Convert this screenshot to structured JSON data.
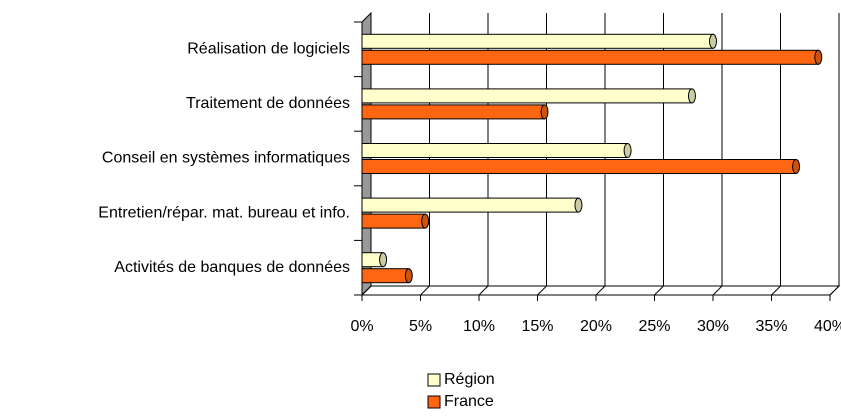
{
  "chart_data": {
    "type": "bar",
    "orientation": "horizontal",
    "categories": [
      "Réalisation de logiciels",
      "Traitement de données",
      "Conseil en systèmes informatiques",
      "Entretien/répar. mat. bureau et info.",
      "Activités de banques de données"
    ],
    "series": [
      {
        "name": "Région",
        "color": "#ffffcc",
        "values": [
          30,
          28.2,
          22.7,
          18.5,
          1.8
        ]
      },
      {
        "name": "France",
        "color": "#ff6611",
        "values": [
          39,
          15.6,
          37.1,
          5.4,
          4.0
        ]
      }
    ],
    "xlim": [
      0,
      40
    ],
    "xticks": [
      {
        "value": 0,
        "label": "0%"
      },
      {
        "value": 5,
        "label": "5%"
      },
      {
        "value": 10,
        "label": "10%"
      },
      {
        "value": 15,
        "label": "15%"
      },
      {
        "value": 20,
        "label": "20%"
      },
      {
        "value": 25,
        "label": "25%"
      },
      {
        "value": 30,
        "label": "30%"
      },
      {
        "value": 35,
        "label": "35%"
      },
      {
        "value": 40,
        "label": "40%"
      }
    ],
    "grid": true,
    "legend": "bottom"
  }
}
